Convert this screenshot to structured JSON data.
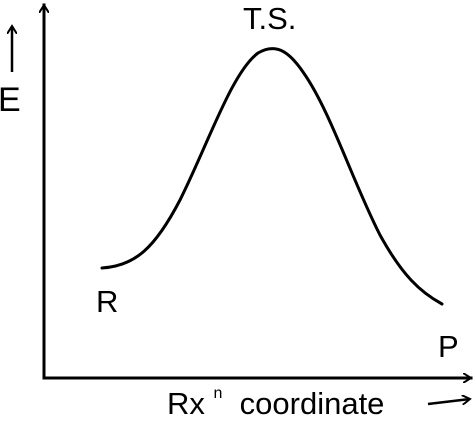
{
  "diagram": {
    "y_axis_label": "E",
    "x_axis_label": "Rx",
    "x_axis_label_superscript": "n",
    "x_axis_label_rest": " coordinate",
    "peak_label": "T.S.",
    "start_label": "R",
    "end_label": "P",
    "line_color": "#000000"
  }
}
